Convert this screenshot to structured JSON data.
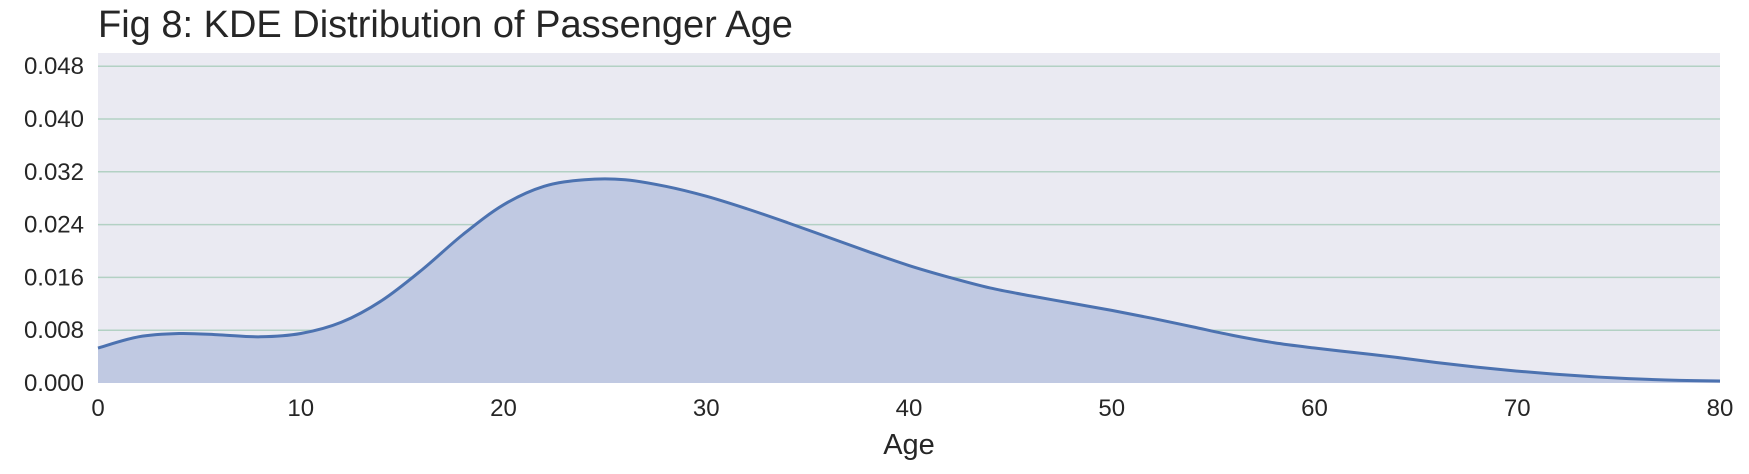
{
  "chart_data": {
    "type": "area",
    "title": "Fig 8: KDE Distribution of Passenger Age",
    "xlabel": "Age",
    "ylabel": "",
    "xlim": [
      0,
      80
    ],
    "ylim": [
      0,
      0.05
    ],
    "xticks": [
      0,
      10,
      20,
      30,
      40,
      50,
      60,
      70,
      80
    ],
    "xtick_labels": [
      "0",
      "10",
      "20",
      "30",
      "40",
      "50",
      "60",
      "70",
      "80"
    ],
    "yticks": [
      0,
      0.008,
      0.016,
      0.024,
      0.032,
      0.04,
      0.048
    ],
    "ytick_labels": [
      "0.000",
      "0.008",
      "0.016",
      "0.024",
      "0.032",
      "0.040",
      "0.048"
    ],
    "grid": "horizontal",
    "legend": "none",
    "colors": {
      "background": "#eaeaf2",
      "grid": "#b3d1c4",
      "line": "#4c72b0",
      "fill": "#c0c9e2"
    },
    "series": [
      {
        "x": [
          0,
          2,
          4,
          6,
          8,
          10,
          12,
          14,
          16,
          18,
          20,
          22,
          24,
          26,
          28,
          30,
          32,
          34,
          36,
          38,
          40,
          42,
          44,
          46,
          48,
          50,
          52,
          54,
          56,
          58,
          60,
          62,
          64,
          66,
          68,
          70,
          72,
          74,
          76,
          78,
          80
        ],
        "values": [
          0.0053,
          0.007,
          0.0075,
          0.0073,
          0.007,
          0.0075,
          0.0092,
          0.0125,
          0.0172,
          0.0225,
          0.027,
          0.0298,
          0.0308,
          0.0308,
          0.0298,
          0.0283,
          0.0264,
          0.0243,
          0.0221,
          0.0199,
          0.0178,
          0.016,
          0.0144,
          0.0132,
          0.0121,
          0.011,
          0.0098,
          0.0085,
          0.0072,
          0.0061,
          0.0053,
          0.0046,
          0.0039,
          0.0031,
          0.0024,
          0.0018,
          0.0013,
          0.0009,
          0.0006,
          0.0004,
          0.0003
        ]
      }
    ]
  }
}
